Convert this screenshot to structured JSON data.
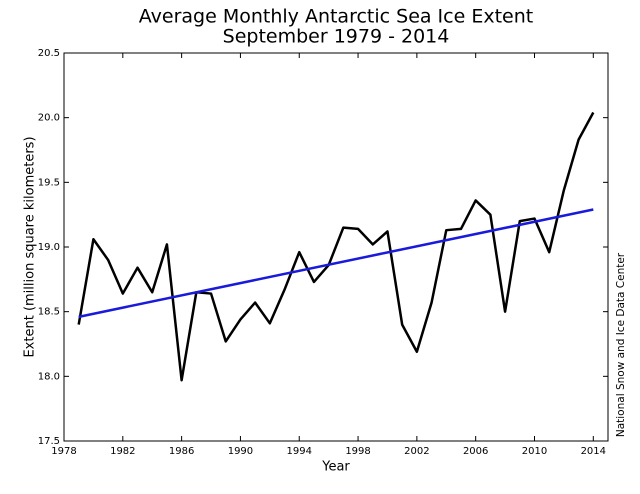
{
  "chart_data": {
    "type": "line",
    "title": "Average Monthly Antarctic Sea Ice Extent",
    "subtitle": "September 1979 - 2014",
    "xlabel": "Year",
    "ylabel": "Extent (million square kilometers)",
    "annotation": "National Snow and Ice Data Center",
    "series": [
      {
        "name": "Extent",
        "color": "#000000",
        "x": [
          1979,
          1980,
          1981,
          1982,
          1983,
          1984,
          1985,
          1986,
          1987,
          1988,
          1989,
          1990,
          1991,
          1992,
          1993,
          1994,
          1995,
          1996,
          1997,
          1998,
          1999,
          2000,
          2001,
          2002,
          2003,
          2004,
          2005,
          2006,
          2007,
          2008,
          2009,
          2010,
          2011,
          2012,
          2013,
          2014
        ],
        "values": [
          18.4,
          19.06,
          18.9,
          18.64,
          18.84,
          18.65,
          19.02,
          17.97,
          18.65,
          18.64,
          18.27,
          18.44,
          18.57,
          18.41,
          18.67,
          18.96,
          18.73,
          18.86,
          19.15,
          19.14,
          19.02,
          19.12,
          18.4,
          18.19,
          18.57,
          19.13,
          19.14,
          19.36,
          19.25,
          18.5,
          19.2,
          19.22,
          18.96,
          19.44,
          19.83,
          20.04
        ]
      },
      {
        "name": "Trend",
        "color": "#1a1adb",
        "x": [
          1979,
          2014
        ],
        "values": [
          18.46,
          19.29
        ]
      }
    ],
    "xlim": [
      1978,
      2015
    ],
    "xticks": [
      1978,
      1982,
      1986,
      1990,
      1994,
      1998,
      2002,
      2006,
      2010,
      2014
    ],
    "ylim": [
      17.5,
      20.5
    ],
    "yticks": [
      17.5,
      {
        "value": 18,
        "label": "18.0"
      },
      18.5,
      {
        "value": 19,
        "label": "19.0"
      },
      19.5,
      {
        "value": 20,
        "label": "20.0"
      },
      20.5
    ],
    "grid": false
  }
}
